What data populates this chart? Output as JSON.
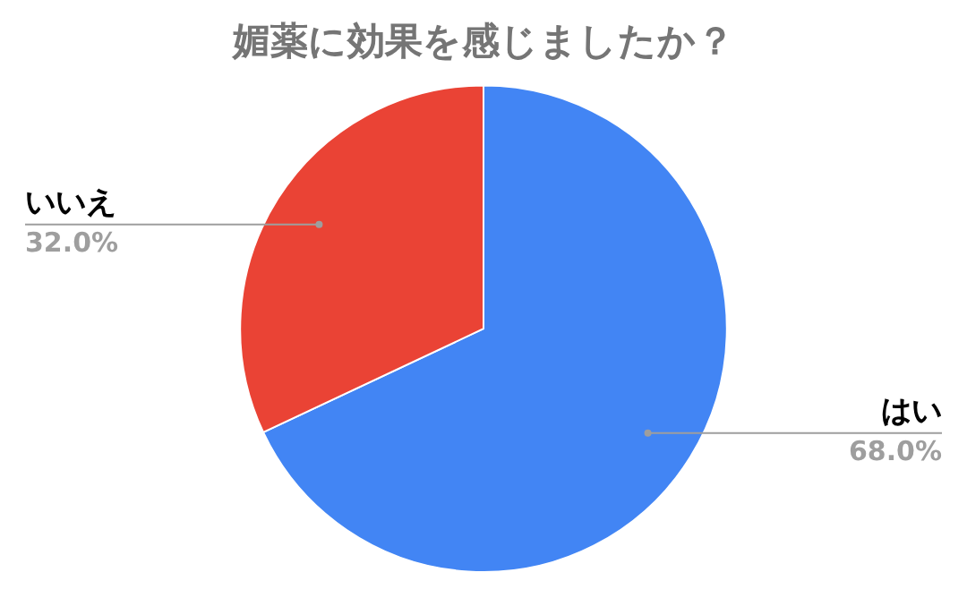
{
  "chart_data": {
    "type": "pie",
    "title": "媚薬に効果を感じましたか？",
    "categories": [
      "はい",
      "いいえ"
    ],
    "values": [
      68,
      32
    ],
    "colors": [
      "#4285f4",
      "#ea4335"
    ],
    "value_labels": [
      "68.0%",
      "32.0%"
    ],
    "legend": false
  }
}
